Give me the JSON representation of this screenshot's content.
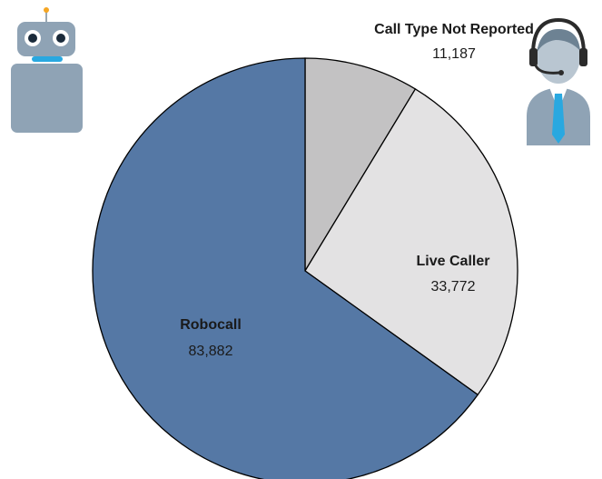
{
  "chart_data": {
    "type": "pie",
    "title": "",
    "slices": [
      {
        "label": "Robocall",
        "value": 83882,
        "display_value": "83,882",
        "color": "#5578a5"
      },
      {
        "label": "Call Type Not Reported",
        "value": 11187,
        "display_value": "11,187",
        "color": "#c3c2c3"
      },
      {
        "label": "Live Caller",
        "value": 33772,
        "display_value": "33,772",
        "color": "#e3e2e3"
      }
    ],
    "legend": "none"
  },
  "icons": {
    "robot": "robot-icon",
    "agent": "headset-agent-icon"
  },
  "colors": {
    "outline": "#000000",
    "icon_body": "#8fa3b5",
    "icon_accent": "#29a8e0"
  }
}
